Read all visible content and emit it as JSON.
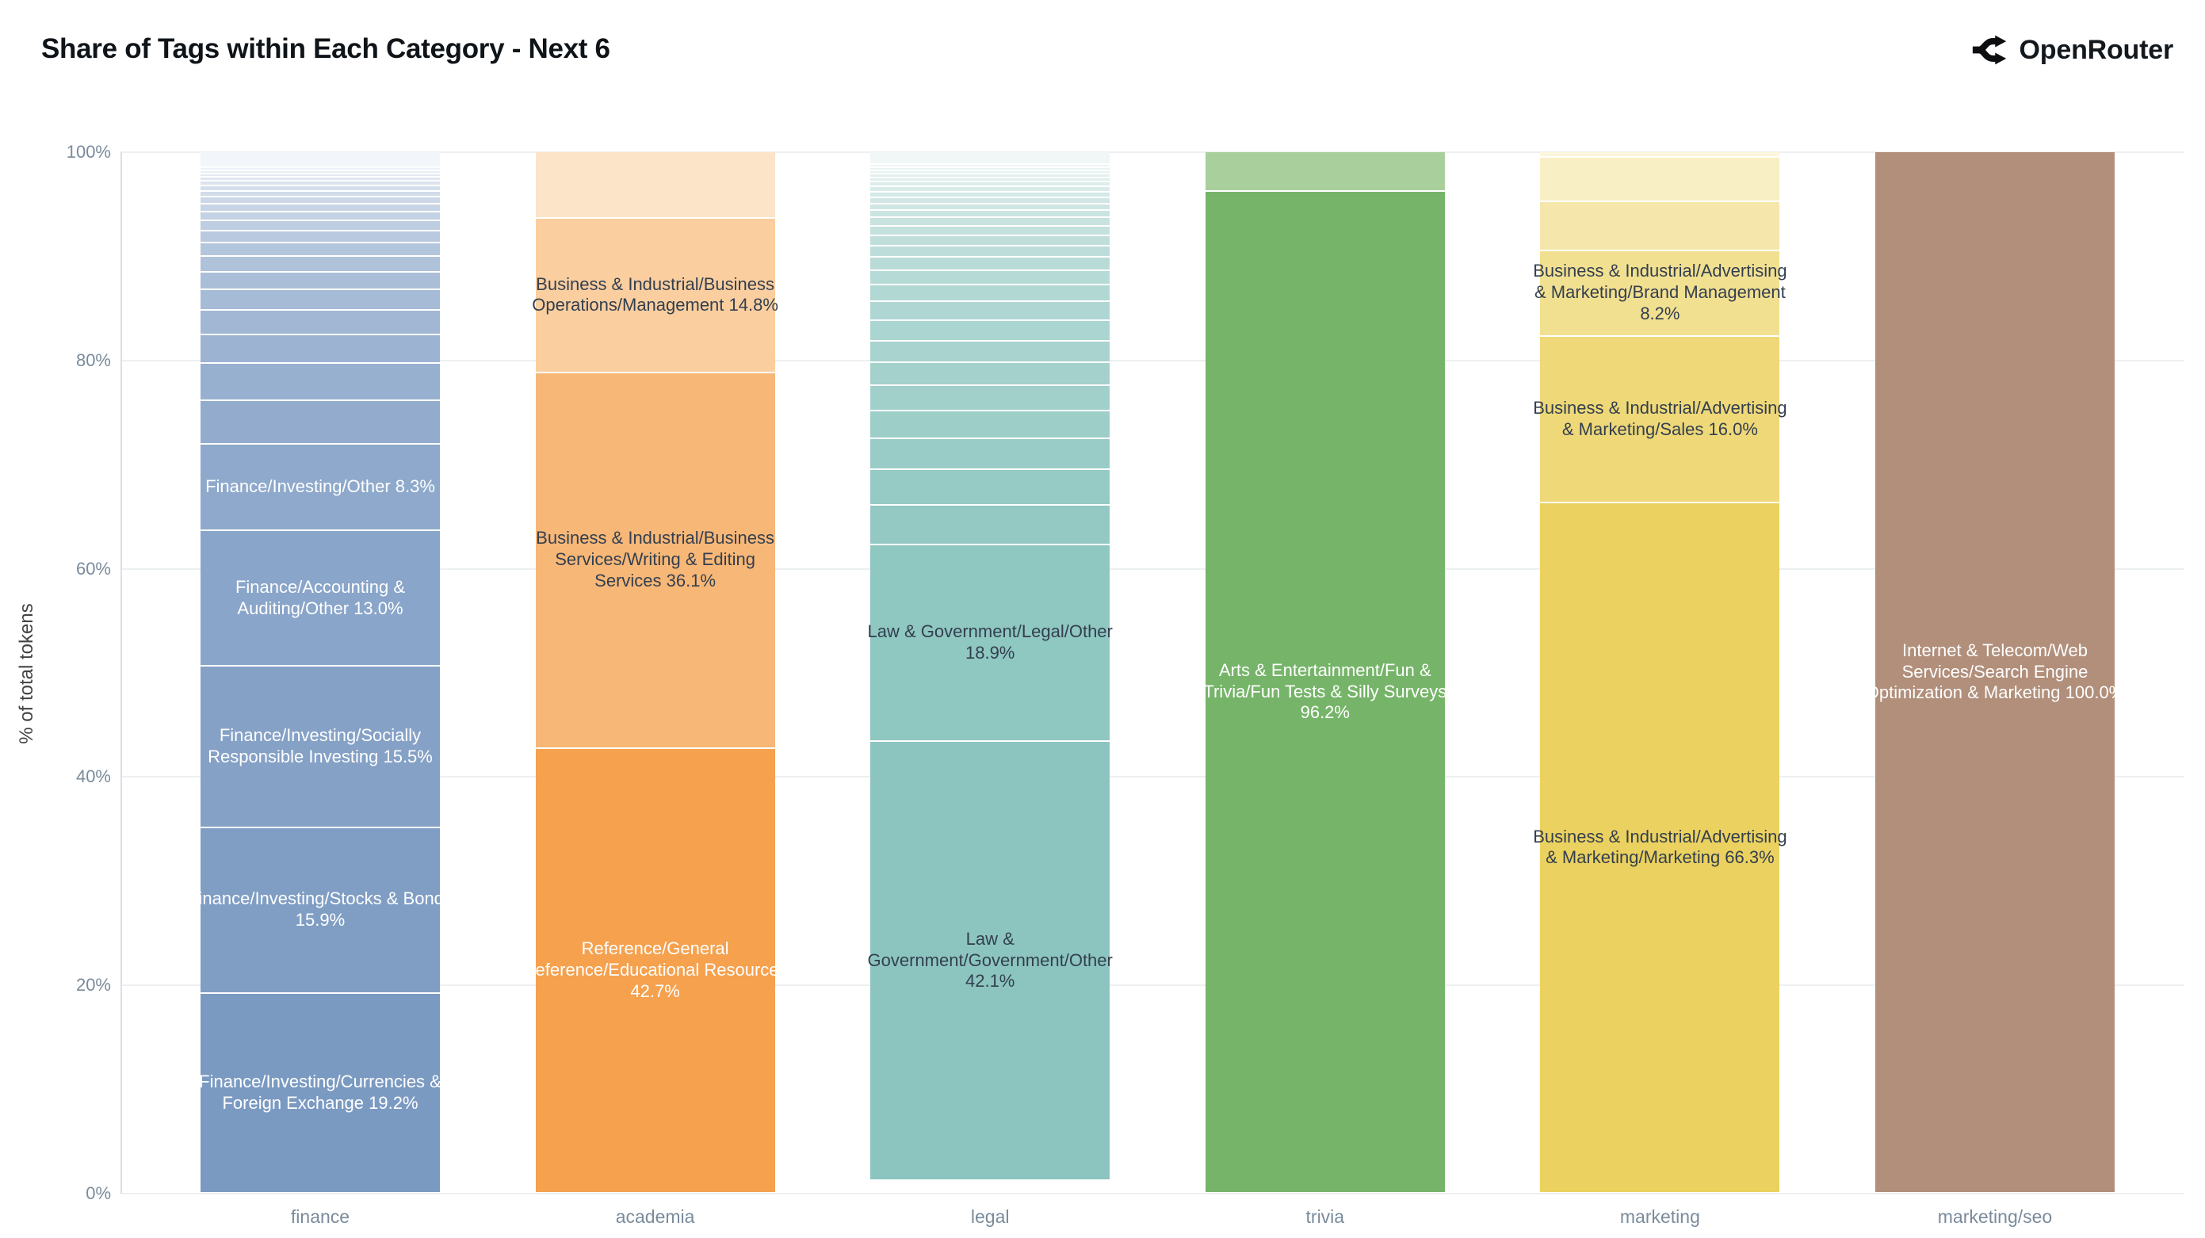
{
  "title": "Share of Tags within Each Category - Next 6",
  "brand": {
    "name": "OpenRouter"
  },
  "y_axis": {
    "title": "% of total tokens",
    "ticks": [
      "0%",
      "20%",
      "40%",
      "60%",
      "80%",
      "100%"
    ]
  },
  "chart_data": {
    "type": "bar",
    "stacked": true,
    "normalized": "percent",
    "title": "Share of Tags within Each Category - Next 6",
    "xlabel": "",
    "ylabel": "% of total tokens",
    "ylim": [
      0,
      100
    ],
    "grid": true,
    "legend": false,
    "categories": [
      "finance",
      "academia",
      "legal",
      "trivia",
      "marketing",
      "marketing/seo"
    ],
    "bars": [
      {
        "category": "finance",
        "base_color": "#7B9AC2",
        "top_color": "#F2F5F9",
        "segments": [
          {
            "label": null,
            "value": 1.5
          },
          {
            "label": null,
            "value": 0.3
          },
          {
            "label": null,
            "value": 0.3
          },
          {
            "label": null,
            "value": 0.35
          },
          {
            "label": null,
            "value": 0.4
          },
          {
            "label": null,
            "value": 0.45
          },
          {
            "label": null,
            "value": 0.5
          },
          {
            "label": null,
            "value": 0.55
          },
          {
            "label": null,
            "value": 0.65
          },
          {
            "label": null,
            "value": 0.75
          },
          {
            "label": null,
            "value": 0.85
          },
          {
            "label": null,
            "value": 1.0
          },
          {
            "label": null,
            "value": 1.15
          },
          {
            "label": null,
            "value": 1.3
          },
          {
            "label": null,
            "value": 1.5
          },
          {
            "label": null,
            "value": 1.7
          },
          {
            "label": null,
            "value": 2.0
          },
          {
            "label": null,
            "value": 2.3
          },
          {
            "label": null,
            "value": 2.75
          },
          {
            "label": null,
            "value": 3.6
          },
          {
            "label": null,
            "value": 4.2
          },
          {
            "label": "Finance/Investing/Other",
            "value": 8.3,
            "text_color": "light"
          },
          {
            "label": "Finance/Accounting & Auditing/Other",
            "value": 13.0,
            "text_color": "light"
          },
          {
            "label": "Finance/Investing/Socially Responsible Investing",
            "value": 15.5,
            "text_color": "light"
          },
          {
            "label": "Finance/Investing/Stocks & Bonds",
            "value": 15.9,
            "text_color": "light"
          },
          {
            "label": "Finance/Investing/Currencies & Foreign Exchange",
            "value": 19.2,
            "text_color": "light"
          }
        ]
      },
      {
        "category": "academia",
        "base_color": "#F5A14E",
        "top_color": "#FCE4C8",
        "segments": [
          {
            "label": null,
            "value": 6.4
          },
          {
            "label": "Business & Industrial/Business Operations/Management",
            "value": 14.8,
            "text_color": "dark"
          },
          {
            "label": "Business & Industrial/Business Services/Writing & Editing Services",
            "value": 36.1,
            "text_color": "dark"
          },
          {
            "label": "Reference/General Reference/Educational Resources",
            "value": 42.7,
            "text_color": "light"
          }
        ]
      },
      {
        "category": "legal",
        "base_color": "#8CC5BF",
        "top_color": "#F1F7F6",
        "segments": [
          {
            "label": null,
            "value": 1.2
          },
          {
            "label": null,
            "value": 0.3
          },
          {
            "label": null,
            "value": 0.3
          },
          {
            "label": null,
            "value": 0.35
          },
          {
            "label": null,
            "value": 0.35
          },
          {
            "label": null,
            "value": 0.4
          },
          {
            "label": null,
            "value": 0.45
          },
          {
            "label": null,
            "value": 0.5
          },
          {
            "label": null,
            "value": 0.55
          },
          {
            "label": null,
            "value": 0.6
          },
          {
            "label": null,
            "value": 0.65
          },
          {
            "label": null,
            "value": 0.7
          },
          {
            "label": null,
            "value": 0.8
          },
          {
            "label": null,
            "value": 0.9
          },
          {
            "label": null,
            "value": 1.0
          },
          {
            "label": null,
            "value": 1.1
          },
          {
            "label": null,
            "value": 1.25
          },
          {
            "label": null,
            "value": 1.4
          },
          {
            "label": null,
            "value": 1.6
          },
          {
            "label": null,
            "value": 1.8
          },
          {
            "label": null,
            "value": 2.0
          },
          {
            "label": null,
            "value": 2.05
          },
          {
            "label": null,
            "value": 2.2
          },
          {
            "label": null,
            "value": 2.4
          },
          {
            "label": null,
            "value": 2.7
          },
          {
            "label": null,
            "value": 3.0
          },
          {
            "label": null,
            "value": 3.4
          },
          {
            "label": null,
            "value": 3.8
          },
          {
            "label": "Law & Government/Legal/Other",
            "value": 18.9,
            "text_color": "dark"
          },
          {
            "label": "Law & Government/Government/Other",
            "value": 42.1,
            "text_color": "dark"
          }
        ]
      },
      {
        "category": "trivia",
        "base_color": "#76B469",
        "top_color": "#A9CF9C",
        "segments": [
          {
            "label": null,
            "value": 3.8
          },
          {
            "label": "Arts & Entertainment/Fun & Trivia/Fun Tests & Silly Surveys",
            "value": 96.2,
            "text_color": "light"
          }
        ]
      },
      {
        "category": "marketing",
        "base_color": "#EBD15F",
        "top_color": "#FCF6DD",
        "segments": [
          {
            "label": null,
            "value": 0.5
          },
          {
            "label": null,
            "value": 4.3
          },
          {
            "label": null,
            "value": 4.7
          },
          {
            "label": "Business & Industrial/Advertising & Marketing/Brand Management",
            "value": 8.2,
            "text_color": "dark"
          },
          {
            "label": "Business & Industrial/Advertising & Marketing/Sales",
            "value": 16.0,
            "text_color": "dark"
          },
          {
            "label": "Business & Industrial/Advertising & Marketing/Marketing",
            "value": 66.3,
            "text_color": "dark"
          }
        ]
      },
      {
        "category": "marketing/seo",
        "base_color": "#B18F7B",
        "top_color": "#B18F7B",
        "segments": [
          {
            "label": "Internet & Telecom/Web Services/Search Engine Optimization & Marketing",
            "value": 100.0,
            "text_color": "light"
          }
        ]
      }
    ],
    "colors": {
      "label_dark_text": "#333F4F",
      "label_light_text": "#FFFFFF",
      "gridline": "#EDF0F2",
      "axis_line": "#D8E0E7",
      "tick_text": "#7A8B9B",
      "title_text": "#0F1419"
    }
  }
}
